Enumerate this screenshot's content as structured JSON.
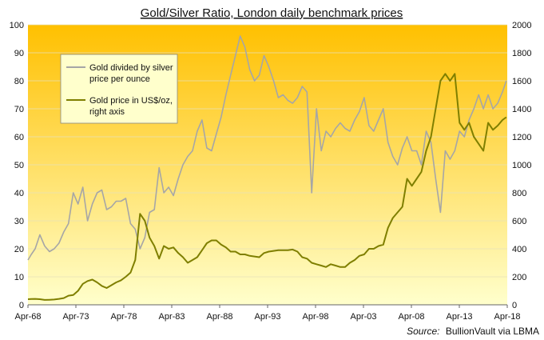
{
  "chart_data": {
    "type": "line",
    "title": "Gold/Silver Ratio, London daily benchmark prices",
    "source_label": "Source:",
    "source_text": "BullionVault via LBMA",
    "x_ticks": [
      "Apr-68",
      "Apr-73",
      "Apr-78",
      "Apr-83",
      "Apr-88",
      "Apr-93",
      "Apr-98",
      "Apr-03",
      "Apr-08",
      "Apr-13",
      "Apr-18"
    ],
    "x_range": [
      1968.25,
      2018.5
    ],
    "y_left": {
      "min": 0,
      "max": 100,
      "ticks": [
        "0",
        "10",
        "20",
        "30",
        "40",
        "50",
        "60",
        "70",
        "80",
        "90",
        "100"
      ]
    },
    "y_right": {
      "min": 0,
      "max": 2000,
      "ticks": [
        "0",
        "200",
        "400",
        "600",
        "800",
        "1000",
        "1200",
        "1400",
        "1600",
        "1800",
        "2000"
      ]
    },
    "colors": {
      "ratio": "#a6a6a6",
      "gold": "#7f7f00",
      "bg_top": "#ffc000",
      "bg_bottom": "#ffffcc"
    },
    "series": [
      {
        "name": "Gold divided by silver price per ounce",
        "legend_lines": [
          "Gold divided by silver",
          "price per ounce"
        ],
        "axis": "left",
        "x": [
          1968.25,
          1968.6,
          1969.0,
          1969.5,
          1970.0,
          1970.5,
          1971.0,
          1971.5,
          1972.0,
          1972.5,
          1973.0,
          1973.5,
          1974.0,
          1974.5,
          1975.0,
          1975.5,
          1976.0,
          1976.5,
          1977.0,
          1977.5,
          1978.0,
          1978.5,
          1979.0,
          1979.5,
          1980.0,
          1980.5,
          1981.0,
          1981.5,
          1982.0,
          1982.5,
          1983.0,
          1983.5,
          1984.0,
          1984.5,
          1985.0,
          1985.5,
          1986.0,
          1986.5,
          1987.0,
          1987.5,
          1988.0,
          1988.5,
          1989.0,
          1989.5,
          1990.0,
          1990.5,
          1991.0,
          1991.5,
          1992.0,
          1992.5,
          1993.0,
          1993.5,
          1994.0,
          1994.5,
          1995.0,
          1995.5,
          1996.0,
          1996.5,
          1997.0,
          1997.5,
          1998.0,
          1998.5,
          1999.0,
          1999.5,
          2000.0,
          2000.5,
          2001.0,
          2001.5,
          2002.0,
          2002.5,
          2003.0,
          2003.5,
          2004.0,
          2004.5,
          2005.0,
          2005.5,
          2006.0,
          2006.5,
          2007.0,
          2007.5,
          2008.0,
          2008.5,
          2009.0,
          2009.5,
          2010.0,
          2010.5,
          2011.0,
          2011.5,
          2012.0,
          2012.5,
          2013.0,
          2013.5,
          2014.0,
          2014.5,
          2015.0,
          2015.5,
          2016.0,
          2016.5,
          2017.0,
          2017.5,
          2018.0,
          2018.4
        ],
        "y": [
          16,
          18,
          20,
          25,
          21,
          19,
          20,
          22,
          26,
          29,
          40,
          36,
          42,
          30,
          36,
          40,
          41,
          34,
          35,
          37,
          37,
          38,
          29,
          27,
          20,
          24,
          33,
          34,
          49,
          40,
          42,
          39,
          45,
          50,
          53,
          55,
          62,
          66,
          56,
          55,
          61,
          67,
          75,
          82,
          89,
          96,
          92,
          84,
          80,
          82,
          89,
          85,
          80,
          74,
          75,
          73,
          72,
          74,
          78,
          76,
          40,
          70,
          55,
          62,
          60,
          63,
          65,
          63,
          62,
          66,
          69,
          74,
          64,
          62,
          66,
          70,
          58,
          53,
          50,
          56,
          60,
          55,
          55,
          50,
          62,
          58,
          45,
          33,
          55,
          52,
          55,
          62,
          60,
          66,
          70,
          75,
          70,
          75,
          70,
          72,
          76,
          80
        ]
      },
      {
        "name": "Gold price in US$/oz, right axis",
        "legend_lines": [
          "Gold price in US$/oz,",
          "right axis"
        ],
        "axis": "right",
        "x": [
          1968.25,
          1968.6,
          1969.0,
          1969.5,
          1970.0,
          1970.5,
          1971.0,
          1971.5,
          1972.0,
          1972.5,
          1973.0,
          1973.5,
          1974.0,
          1974.5,
          1975.0,
          1975.5,
          1976.0,
          1976.5,
          1977.0,
          1977.5,
          1978.0,
          1978.5,
          1979.0,
          1979.5,
          1980.0,
          1980.5,
          1981.0,
          1981.5,
          1982.0,
          1982.5,
          1983.0,
          1983.5,
          1984.0,
          1984.5,
          1985.0,
          1985.5,
          1986.0,
          1986.5,
          1987.0,
          1987.5,
          1988.0,
          1988.5,
          1989.0,
          1989.5,
          1990.0,
          1990.5,
          1991.0,
          1991.5,
          1992.0,
          1992.5,
          1993.0,
          1993.5,
          1994.0,
          1994.5,
          1995.0,
          1995.5,
          1996.0,
          1996.5,
          1997.0,
          1997.5,
          1998.0,
          1998.5,
          1999.0,
          1999.5,
          2000.0,
          2000.5,
          2001.0,
          2001.5,
          2002.0,
          2002.5,
          2003.0,
          2003.5,
          2004.0,
          2004.5,
          2005.0,
          2005.5,
          2006.0,
          2006.5,
          2007.0,
          2007.5,
          2008.0,
          2008.5,
          2009.0,
          2009.5,
          2010.0,
          2010.5,
          2011.0,
          2011.5,
          2012.0,
          2012.5,
          2013.0,
          2013.5,
          2014.0,
          2014.5,
          2015.0,
          2015.5,
          2016.0,
          2016.5,
          2017.0,
          2017.5,
          2018.0,
          2018.4
        ],
        "y": [
          40,
          41,
          42,
          40,
          35,
          36,
          38,
          42,
          48,
          65,
          70,
          100,
          150,
          170,
          180,
          160,
          135,
          120,
          140,
          160,
          175,
          200,
          230,
          320,
          650,
          600,
          480,
          420,
          330,
          420,
          400,
          410,
          370,
          340,
          300,
          320,
          340,
          390,
          440,
          460,
          460,
          430,
          410,
          380,
          380,
          360,
          360,
          350,
          345,
          340,
          370,
          380,
          385,
          390,
          390,
          390,
          395,
          380,
          340,
          330,
          300,
          290,
          280,
          270,
          290,
          280,
          270,
          270,
          300,
          320,
          350,
          360,
          400,
          400,
          420,
          430,
          550,
          620,
          660,
          700,
          900,
          850,
          900,
          950,
          1100,
          1200,
          1400,
          1600,
          1650,
          1600,
          1650,
          1300,
          1250,
          1300,
          1200,
          1150,
          1100,
          1300,
          1250,
          1280,
          1320,
          1340
        ]
      }
    ]
  }
}
